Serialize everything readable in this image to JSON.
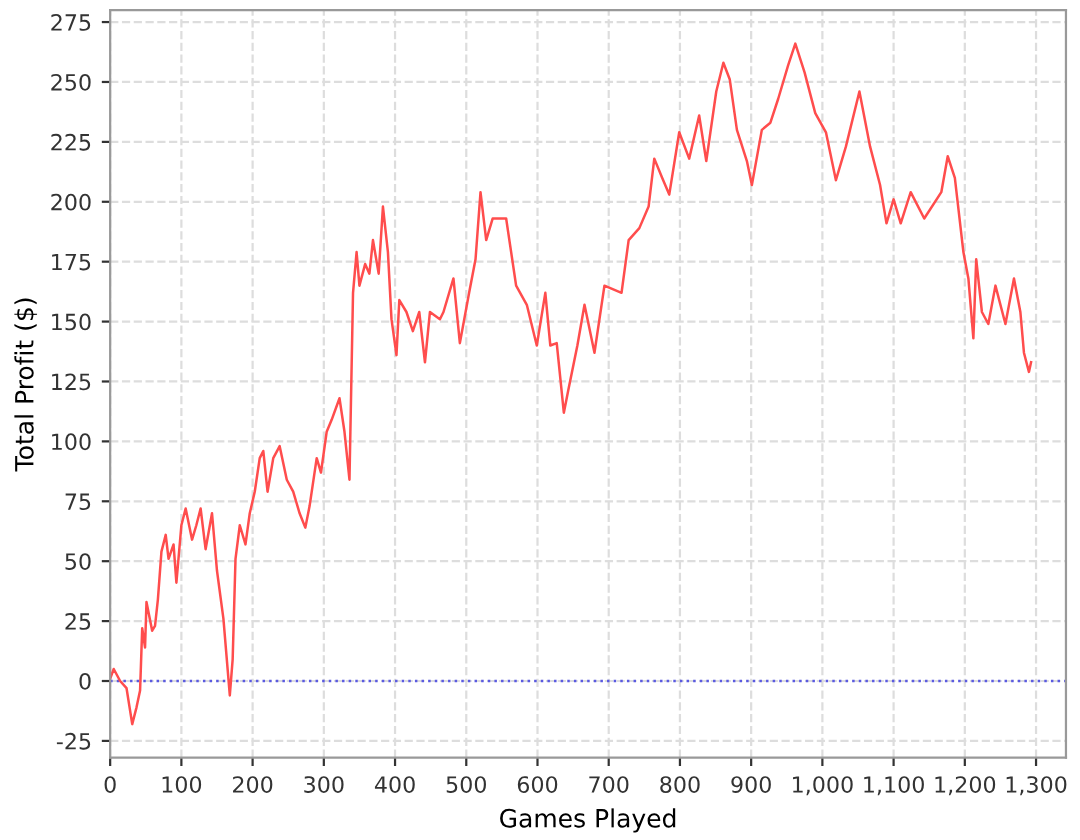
{
  "chart_data": {
    "type": "line",
    "xlabel": "Games Played",
    "ylabel": "Total Profit ($)",
    "xlim": [
      0,
      1342
    ],
    "ylim": [
      -32,
      280
    ],
    "xticks": [
      0,
      100,
      200,
      300,
      400,
      500,
      600,
      700,
      800,
      900,
      {
        "value": 1000,
        "label": "1,000"
      },
      {
        "value": 1100,
        "label": "1,100"
      },
      {
        "value": 1200,
        "label": "1,200"
      },
      {
        "value": 1300,
        "label": "1,300"
      }
    ],
    "yticks": [
      -25,
      0,
      25,
      50,
      75,
      100,
      125,
      150,
      175,
      200,
      225,
      250,
      275
    ],
    "grid": true,
    "legend": false,
    "marker": "none",
    "line_style": "solid",
    "ref_lines": [
      {
        "axis": "y",
        "value": 0,
        "color": "#5a5ae0",
        "line_style": "dotted"
      }
    ],
    "series": [
      {
        "color": "#ff4d4d",
        "x": [
          0,
          5,
          14,
          23,
          31,
          37,
          42,
          45,
          49,
          51,
          59,
          63,
          67,
          72,
          78,
          82,
          89,
          93,
          100,
          106,
          115,
          121,
          127,
          134,
          143,
          150,
          159,
          168,
          172,
          176,
          182,
          190,
          196,
          203,
          210,
          215,
          221,
          229,
          238,
          248,
          257,
          266,
          274,
          280,
          290,
          296,
          304,
          311,
          322,
          329,
          336,
          341,
          346,
          350,
          358,
          364,
          369,
          377,
          383,
          390,
          395,
          402,
          406,
          416,
          425,
          434,
          442,
          449,
          463,
          468,
          482,
          491,
          504,
          513,
          520,
          528,
          537,
          556,
          570,
          585,
          599,
          611,
          618,
          627,
          637,
          643,
          656,
          666,
          680,
          694,
          718,
          728,
          743,
          756,
          764,
          775,
          785,
          799,
          813,
          827,
          837,
          851,
          861,
          870,
          880,
          894,
          901,
          915,
          927,
          938,
          952,
          962,
          975,
          990,
          1005,
          1019,
          1033,
          1052,
          1067,
          1081,
          1090,
          1100,
          1110,
          1124,
          1143,
          1167,
          1176,
          1186,
          1198,
          1205,
          1212,
          1216,
          1224,
          1233,
          1243,
          1257,
          1269,
          1278,
          1283,
          1290,
          1293
        ],
        "values": [
          1,
          5,
          0,
          -3,
          -18,
          -11,
          -4,
          22,
          14,
          33,
          21,
          23,
          34,
          54,
          61,
          51,
          57,
          41,
          65,
          72,
          59,
          65,
          72,
          55,
          70,
          46,
          26,
          -6,
          9,
          51,
          65,
          57,
          70,
          79,
          93,
          96,
          79,
          93,
          98,
          84,
          79,
          70,
          64,
          73,
          93,
          87,
          104,
          109,
          118,
          104,
          84,
          162,
          179,
          165,
          174,
          170,
          184,
          170,
          198,
          179,
          151,
          136,
          159,
          154,
          146,
          154,
          133,
          154,
          151,
          154,
          168,
          141,
          162,
          176,
          204,
          184,
          193,
          193,
          165,
          157,
          140,
          162,
          140,
          141,
          112,
          121,
          140,
          157,
          137,
          165,
          162,
          184,
          189,
          198,
          218,
          210,
          203,
          229,
          218,
          236,
          217,
          246,
          258,
          251,
          230,
          217,
          207,
          230,
          233,
          243,
          257,
          266,
          254,
          237,
          229,
          209,
          223,
          246,
          223,
          207,
          191,
          201,
          191,
          204,
          193,
          204,
          219,
          210,
          179,
          168,
          143,
          176,
          154,
          149,
          165,
          149,
          168,
          154,
          137,
          129,
          133
        ]
      }
    ]
  }
}
